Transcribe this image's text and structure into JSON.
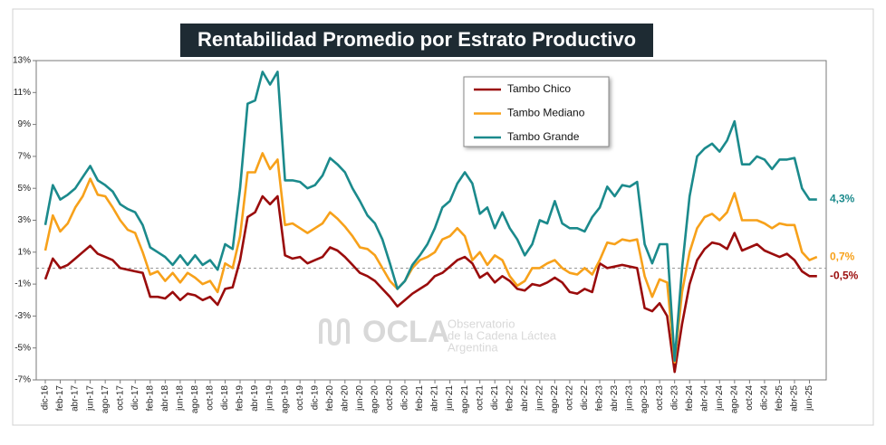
{
  "chart_data": {
    "type": "line",
    "title": "Rentabilidad Promedio por Estrato Productivo",
    "categories": [
      "dic-16",
      null,
      "feb-17",
      null,
      "abr-17",
      null,
      "jun-17",
      null,
      "ago-17",
      null,
      "oct-17",
      null,
      "dic-17",
      null,
      "feb-18",
      null,
      "abr-18",
      null,
      "jun-18",
      null,
      "ago-18",
      null,
      "oct-18",
      null,
      "dic-18",
      null,
      "feb-19",
      null,
      "abr-19",
      null,
      "jun-19",
      null,
      "ago-19",
      null,
      "oct-19",
      null,
      "dic-19",
      null,
      "feb-20",
      null,
      "abr-20",
      null,
      "jun-20",
      null,
      "ago-20",
      null,
      "oct-20",
      null,
      "dic-20",
      null,
      "feb-21",
      null,
      "abr-21",
      null,
      "jun-21",
      null,
      "ago-21",
      null,
      "oct-21",
      null,
      "dic-21",
      null,
      "feb-22",
      null,
      "abr-22",
      null,
      "jun-22",
      null,
      "ago-22",
      null,
      "oct-22",
      null,
      "dic-22",
      null,
      "feb-23",
      null,
      "abr-23",
      null,
      "jun-23",
      null,
      "ago-23",
      null,
      "oct-23",
      null,
      "dic-23",
      null,
      "feb-24",
      null,
      "abr-24",
      null,
      "jun-24",
      null,
      "ago-24",
      null,
      "oct-24",
      null,
      "dic-24",
      null,
      "feb-25",
      null,
      "abr-25",
      null,
      "jun-25",
      null
    ],
    "series": [
      {
        "name": "Tambo Chico",
        "color": "#9a0c0c",
        "end_label": "-0,5%",
        "values": [
          -0.7,
          0.6,
          0.0,
          0.2,
          0.6,
          1.0,
          1.4,
          0.9,
          0.7,
          0.5,
          0.0,
          -0.1,
          -0.2,
          -0.3,
          -1.8,
          -1.8,
          -1.9,
          -1.5,
          -2.0,
          -1.6,
          -1.7,
          -2.0,
          -1.8,
          -2.3,
          -1.3,
          -1.2,
          0.5,
          3.2,
          3.5,
          4.5,
          4.0,
          4.5,
          0.8,
          0.6,
          0.7,
          0.3,
          0.5,
          0.7,
          1.3,
          1.1,
          0.7,
          0.2,
          -0.3,
          -0.5,
          -0.8,
          -1.3,
          -1.8,
          -2.4,
          -2.0,
          -1.6,
          -1.3,
          -1.0,
          -0.5,
          -0.3,
          0.1,
          0.5,
          0.7,
          0.3,
          -0.6,
          -0.3,
          -0.9,
          -0.5,
          -0.8,
          -1.3,
          -1.4,
          -1.0,
          -1.1,
          -0.9,
          -0.6,
          -0.9,
          -1.5,
          -1.6,
          -1.3,
          -1.5,
          0.3,
          0.0,
          0.1,
          0.2,
          0.1,
          0.0,
          -2.5,
          -2.7,
          -2.2,
          -3.0,
          -6.5,
          -3.5,
          -1.0,
          0.5,
          1.2,
          1.6,
          1.5,
          1.2,
          2.2,
          1.1,
          1.3,
          1.5,
          1.1,
          0.9,
          0.7,
          0.9,
          0.5,
          -0.2,
          -0.5,
          -0.5
        ]
      },
      {
        "name": "Tambo Mediano",
        "color": "#f7a11a",
        "end_label": "0,7%",
        "values": [
          1.1,
          3.3,
          2.3,
          2.8,
          3.8,
          4.5,
          5.6,
          4.6,
          4.5,
          3.8,
          3.0,
          2.4,
          2.2,
          1.0,
          -0.4,
          -0.2,
          -0.8,
          -0.3,
          -0.9,
          -0.3,
          -0.6,
          -1.0,
          -0.8,
          -1.5,
          0.3,
          0.0,
          2.0,
          6.0,
          6.0,
          7.2,
          6.2,
          6.8,
          2.7,
          2.8,
          2.5,
          2.2,
          2.5,
          2.8,
          3.5,
          3.1,
          2.6,
          2.0,
          1.3,
          1.2,
          0.8,
          0.0,
          -0.8,
          -1.3,
          -0.8,
          0.0,
          0.5,
          0.7,
          1.0,
          1.8,
          2.0,
          2.5,
          2.0,
          0.5,
          1.0,
          0.2,
          0.8,
          0.5,
          -0.5,
          -1.1,
          -0.8,
          0.0,
          0.0,
          0.3,
          0.5,
          0.0,
          -0.3,
          -0.4,
          0.0,
          -0.4,
          0.5,
          1.6,
          1.5,
          1.8,
          1.7,
          1.8,
          -0.5,
          -1.8,
          -0.7,
          -0.9,
          -5.9,
          -1.5,
          1.0,
          2.5,
          3.2,
          3.4,
          3.0,
          3.5,
          4.7,
          3.0,
          3.0,
          3.0,
          2.8,
          2.5,
          2.8,
          2.7,
          2.7,
          1.0,
          0.5,
          0.7
        ]
      },
      {
        "name": "Tambo Grande",
        "color": "#1b8a8c",
        "end_label": "4,3%",
        "values": [
          2.7,
          5.2,
          4.3,
          4.6,
          5.0,
          5.7,
          6.4,
          5.5,
          5.2,
          4.8,
          4.0,
          3.7,
          3.5,
          2.7,
          1.3,
          1.0,
          0.7,
          0.2,
          0.8,
          0.2,
          0.8,
          0.2,
          0.5,
          -0.1,
          1.5,
          1.2,
          5.0,
          10.3,
          10.5,
          12.3,
          11.5,
          12.3,
          5.5,
          5.5,
          5.4,
          5.0,
          5.2,
          5.8,
          6.9,
          6.5,
          6.0,
          5.0,
          4.2,
          3.3,
          2.8,
          1.8,
          0.3,
          -1.3,
          -0.8,
          0.2,
          0.8,
          1.5,
          2.5,
          3.8,
          4.2,
          5.3,
          6.0,
          5.3,
          3.4,
          3.8,
          2.5,
          3.5,
          2.5,
          1.8,
          0.8,
          1.5,
          3.0,
          2.8,
          4.2,
          2.8,
          2.5,
          2.5,
          2.3,
          3.2,
          3.8,
          5.1,
          4.5,
          5.2,
          5.1,
          5.4,
          1.5,
          0.3,
          1.5,
          1.5,
          -5.8,
          0.0,
          4.5,
          7.0,
          7.5,
          7.8,
          7.3,
          8.0,
          9.2,
          6.5,
          6.5,
          7.0,
          6.8,
          6.2,
          6.8,
          6.8,
          6.9,
          5.0,
          4.3,
          4.3
        ]
      }
    ],
    "ylim": [
      -7,
      13
    ],
    "yticks": [
      {
        "value": -7,
        "label": "-7%"
      },
      {
        "value": -5,
        "label": "-5%"
      },
      {
        "value": -3,
        "label": "-3%"
      },
      {
        "value": -1,
        "label": "-1%"
      },
      {
        "value": 1,
        "label": "1%"
      },
      {
        "value": 3,
        "label": "3%"
      },
      {
        "value": 5,
        "label": "5%"
      },
      {
        "value": 7,
        "label": "7%"
      },
      {
        "value": 9,
        "label": "9%"
      },
      {
        "value": 11,
        "label": "11%"
      },
      {
        "value": 13,
        "label": "13%"
      }
    ],
    "grid": false,
    "legend": "upper center",
    "watermark": {
      "logo": "OCLA",
      "lines": [
        "Observatorio",
        "de la Cadena Láctea",
        "Argentina"
      ]
    }
  }
}
